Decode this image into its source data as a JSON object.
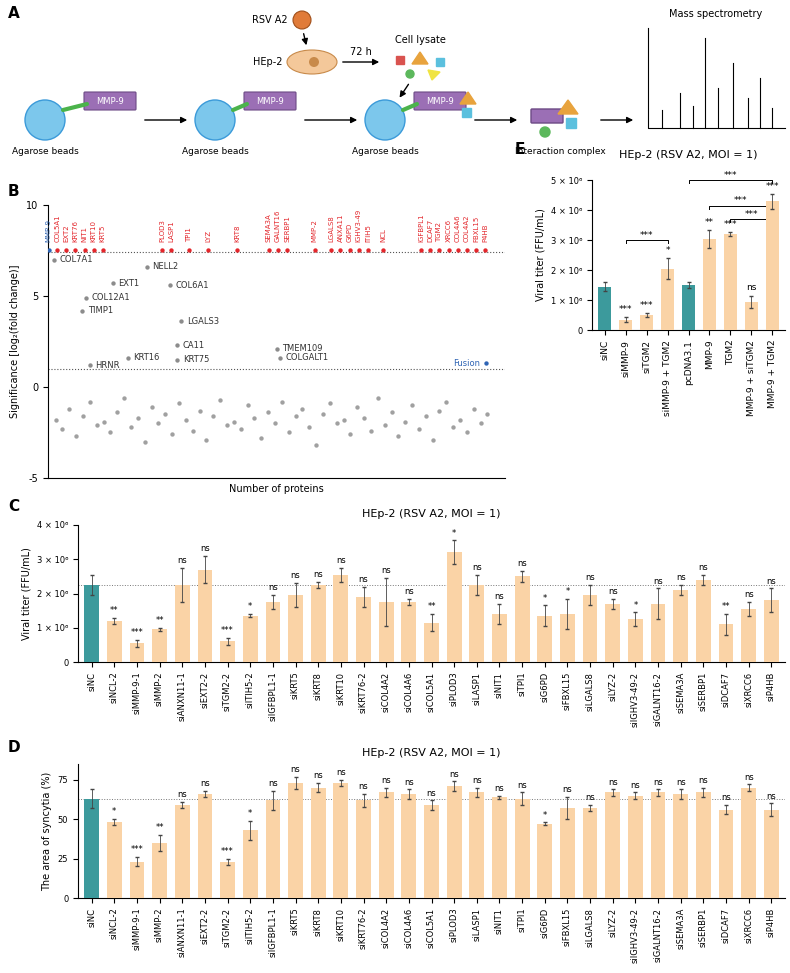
{
  "diagram": {
    "panel": "A",
    "virus": "RSV A2",
    "time": "72 h",
    "cell": "HEp-2",
    "lysate": "Cell lysate",
    "proteins": [
      "MMP-9",
      "MMP-9",
      "MMP-9"
    ],
    "beads": [
      "Agarose beads",
      "Agarose beads",
      "Agarose beads"
    ],
    "complex": "Interaction complex",
    "ms": "Mass spectrometry"
  },
  "chart_data": [
    {
      "panel": "B",
      "type": "scatter",
      "xlabel": "Number of proteins",
      "ylabel": "Significance [log₂(fold change)]",
      "xlim": [
        0,
        600
      ],
      "ylim": [
        -5,
        10
      ],
      "yticks": [
        -5,
        0,
        5,
        10
      ],
      "tick_labels": "y",
      "reference_lines": [
        7.4,
        1
      ],
      "series": [
        {
          "color": "#e3262b",
          "x": [
            12,
            24,
            36,
            48,
            60,
            72,
            150,
            162,
            185,
            210,
            248,
            290,
            302,
            314,
            350,
            372,
            384,
            396,
            408,
            420,
            440,
            490,
            502,
            514,
            526,
            538,
            550,
            562,
            574
          ],
          "values": [
            7.5,
            7.5,
            7.5,
            7.5,
            7.5,
            7.5,
            7.5,
            7.5,
            7.5,
            7.5,
            7.5,
            7.5,
            7.5,
            7.5,
            7.5,
            7.5,
            7.5,
            7.5,
            7.5,
            7.5,
            7.5,
            7.5,
            7.5,
            7.5,
            7.5,
            7.5,
            7.5,
            7.5,
            7.5
          ],
          "point_labels": [
            "COL5A1",
            "EXT2",
            "KRT76",
            "NIT1",
            "KRT10",
            "KRT5",
            "PLOD3",
            "LASP1",
            "TPI1",
            "LYZ",
            "KRT8",
            "SEMA3A",
            "GALNT16",
            "SERBP1",
            "MMP-2",
            "LGALS8",
            "ANXA11",
            "G6PD",
            "IGHV3-49",
            "ITIH5",
            "NCL",
            "IGFBPL1",
            "DCAF7",
            "TGM2",
            "XRCC6",
            "COL4A6",
            "COL4A2",
            "FBXL15",
            "P4HB"
          ]
        },
        {
          "color": "#2e64b4",
          "x": [
            1,
            575
          ],
          "values": [
            7.5,
            1.3
          ],
          "point_labels": [
            "MMP-9",
            "Fusion"
          ]
        },
        {
          "color": "#8c8c8c",
          "x": [
            8,
            130,
            85,
            160,
            50,
            45,
            175,
            170,
            300,
            305,
            170,
            55,
            105
          ],
          "values": [
            7.0,
            6.6,
            5.7,
            5.6,
            4.9,
            4.2,
            3.6,
            2.3,
            2.1,
            1.6,
            1.5,
            1.2,
            1.6
          ],
          "point_labels": [
            "COL7A1",
            "NELL2",
            "EXT1",
            "COL6A1",
            "COL12A1",
            "TIMP1",
            "LGALS3",
            "CA11",
            "TMEM109",
            "COLGALT1",
            "KRT75",
            "HRNR",
            "KRT16"
          ]
        },
        {
          "color": "#a0a0a0",
          "x": [
            10,
            19,
            28,
            37,
            46,
            55,
            64,
            73,
            82,
            91,
            100,
            109,
            118,
            127,
            136,
            145,
            154,
            163,
            172,
            181,
            190,
            199,
            208,
            217,
            226,
            235,
            244,
            253,
            262,
            271,
            280,
            289,
            298,
            307,
            316,
            325,
            334,
            343,
            352,
            361,
            370,
            379,
            388,
            397,
            406,
            415,
            424,
            433,
            442,
            451,
            460,
            469,
            478,
            487,
            496,
            505,
            514,
            523,
            532,
            541,
            550,
            559,
            568,
            577
          ],
          "values": [
            -1.8,
            -2.3,
            -1.2,
            -2.7,
            -1.6,
            -0.8,
            -2.1,
            -1.9,
            -2.5,
            -1.4,
            -0.6,
            -2.2,
            -1.7,
            -3.0,
            -1.1,
            -2.0,
            -1.5,
            -2.6,
            -0.9,
            -1.8,
            -2.4,
            -1.3,
            -2.9,
            -1.6,
            -0.7,
            -2.1,
            -1.9,
            -2.3,
            -1.0,
            -1.7,
            -2.8,
            -1.4,
            -2.0,
            -0.8,
            -2.5,
            -1.6,
            -1.2,
            -2.2,
            -3.2,
            -1.5,
            -0.9,
            -2.0,
            -1.8,
            -2.6,
            -1.1,
            -1.7,
            -2.4,
            -0.6,
            -2.1,
            -1.4,
            -2.7,
            -1.9,
            -1.0,
            -2.3,
            -1.6,
            -2.9,
            -1.3,
            -0.8,
            -2.2,
            -1.8,
            -2.5,
            -1.2,
            -2.0,
            -1.5
          ]
        }
      ]
    },
    {
      "panel": "C",
      "type": "bar",
      "title": "HEp-2 (RSV A2, MOI = 1)",
      "ylabel": "Viral titer (FFU/mL)",
      "categories": [
        "siNC",
        "siNCL-2",
        "siMMP-9-1",
        "siMMP-2",
        "siANXN11-1",
        "siEXT2-2",
        "siTGM2-2",
        "siITIH5-2",
        "siIGFBPL1-1",
        "siKRT5",
        "siKRT8",
        "siKRT10",
        "siKRT76-2",
        "siCOL4A2",
        "siCOL4A6",
        "siCOL5A1",
        "siPLOD3",
        "siLASP1",
        "siNIT1",
        "siTPI1",
        "siG6PD",
        "siFBXL15",
        "siLGALS8",
        "siLYZ-2",
        "siIGHV3-49-2",
        "siGALNT16-2",
        "siSEMA3A",
        "siSERBP1",
        "siDCAF7",
        "siXRCC6",
        "siP4HB"
      ],
      "values": [
        2250000,
        1200000,
        550000,
        950000,
        2250000,
        2700000,
        600000,
        1350000,
        1750000,
        1950000,
        2250000,
        2550000,
        1900000,
        1750000,
        1750000,
        1150000,
        3200000,
        2250000,
        1400000,
        2500000,
        1350000,
        1400000,
        1950000,
        1700000,
        1250000,
        1700000,
        2100000,
        2400000,
        1100000,
        1550000,
        1800000
      ],
      "errors": [
        300000,
        80000,
        100000,
        50000,
        500000,
        400000,
        100000,
        50000,
        200000,
        350000,
        100000,
        200000,
        300000,
        700000,
        100000,
        250000,
        350000,
        300000,
        300000,
        150000,
        300000,
        450000,
        300000,
        150000,
        200000,
        450000,
        150000,
        150000,
        300000,
        200000,
        350000
      ],
      "significance": [
        null,
        "**",
        "***",
        "**",
        "ns",
        "ns",
        "***",
        "*",
        "ns",
        "ns",
        "ns",
        "ns",
        "ns",
        "ns",
        "ns",
        "**",
        "*",
        "ns",
        "ns",
        "ns",
        "*",
        "*",
        "ns",
        "ns",
        "*",
        "ns",
        "ns",
        "ns",
        "**",
        "ns",
        "ns"
      ],
      "reference_lines": [
        2250000
      ],
      "colors": [
        "#3c9a9c",
        "#fad3a6",
        "#fad3a6",
        "#fad3a6",
        "#fad3a6",
        "#fad3a6",
        "#fad3a6",
        "#fad3a6",
        "#fad3a6",
        "#fad3a6",
        "#fad3a6",
        "#fad3a6",
        "#fad3a6",
        "#fad3a6",
        "#fad3a6",
        "#fad3a6",
        "#fad3a6",
        "#fad3a6",
        "#fad3a6",
        "#fad3a6",
        "#fad3a6",
        "#fad3a6",
        "#fad3a6",
        "#fad3a6",
        "#fad3a6",
        "#fad3a6",
        "#fad3a6",
        "#fad3a6",
        "#fad3a6",
        "#fad3a6",
        "#fad3a6"
      ],
      "ylim": [
        0,
        4000000
      ],
      "yticks": [
        0,
        {
          "value": 1000000,
          "label": "1 × 10⁶"
        },
        {
          "value": 2000000,
          "label": "2 × 10⁶"
        },
        {
          "value": 3000000,
          "label": "3 × 10⁶"
        },
        {
          "value": 4000000,
          "label": "4 × 10⁶"
        }
      ]
    },
    {
      "panel": "D",
      "type": "bar",
      "title": "HEp-2 (RSV A2, MOI = 1)",
      "ylabel": "The area of syncytia (%)",
      "categories": [
        "siNC",
        "siNCL-2",
        "siMMP-9-1",
        "siMMP-2",
        "siANXN11-1",
        "siEXT2-2",
        "siTGM2-2",
        "siITIH5-2",
        "siIGFBPL1-1",
        "siKRT5",
        "siKRT8",
        "siKRT10",
        "siKRT76-2",
        "siCOL4A2",
        "siCOL4A6",
        "siCOL5A1",
        "siPLOD3",
        "siLASP1",
        "siNIT1",
        "siTPI1",
        "siG6PD",
        "siFBXL15",
        "siLGALS8",
        "siLYZ-2",
        "siIGHV3-49-2",
        "siGALNT16-2",
        "siSEMA3A",
        "siSERBP1",
        "siDCAF7",
        "siXRCC6",
        "siP4HB"
      ],
      "values": [
        63,
        48,
        23,
        35,
        59,
        66,
        23,
        43,
        62,
        73,
        70,
        73,
        62,
        67,
        66,
        59,
        71,
        67,
        64,
        63,
        47,
        57,
        57,
        67,
        65,
        67,
        66,
        67,
        56,
        70,
        56
      ],
      "errors": [
        6,
        2,
        3,
        5,
        2,
        2,
        2,
        6,
        6,
        4,
        3,
        2,
        4,
        3,
        3,
        3,
        3,
        3,
        1,
        4,
        1,
        7,
        2,
        2,
        2,
        2,
        3,
        3,
        3,
        2,
        4
      ],
      "significance": [
        null,
        "*",
        "***",
        "**",
        "ns",
        "ns",
        "***",
        "*",
        "ns",
        "ns",
        "ns",
        "ns",
        "ns",
        "ns",
        "ns",
        "ns",
        "ns",
        "ns",
        "ns",
        "ns",
        "*",
        "ns",
        "ns",
        "ns",
        "ns",
        "ns",
        "ns",
        "ns",
        "ns",
        "ns",
        "ns"
      ],
      "reference_lines": [
        63
      ],
      "colors": [
        "#3c9a9c",
        "#fad3a6",
        "#fad3a6",
        "#fad3a6",
        "#fad3a6",
        "#fad3a6",
        "#fad3a6",
        "#fad3a6",
        "#fad3a6",
        "#fad3a6",
        "#fad3a6",
        "#fad3a6",
        "#fad3a6",
        "#fad3a6",
        "#fad3a6",
        "#fad3a6",
        "#fad3a6",
        "#fad3a6",
        "#fad3a6",
        "#fad3a6",
        "#fad3a6",
        "#fad3a6",
        "#fad3a6",
        "#fad3a6",
        "#fad3a6",
        "#fad3a6",
        "#fad3a6",
        "#fad3a6",
        "#fad3a6",
        "#fad3a6",
        "#fad3a6"
      ],
      "ylim": [
        0,
        85
      ],
      "yticks": [
        0,
        25,
        50,
        75
      ]
    },
    {
      "panel": "E",
      "type": "bar",
      "title": "HEp-2 (RSV A2, MOI = 1)",
      "ylabel": "Viral titer (FFU/mL)",
      "categories": [
        "siNC",
        "siMMP-9",
        "siTGM2",
        "siMMP-9 + TGM2",
        "pcDNA3.1",
        "MMP-9",
        "TGM2",
        "MMP-9 + siTGM2",
        "MMP-9 + TGM2"
      ],
      "values": [
        1450000,
        350000,
        500000,
        2050000,
        1500000,
        3050000,
        3200000,
        950000,
        4300000
      ],
      "errors": [
        150000,
        80000,
        80000,
        350000,
        100000,
        300000,
        80000,
        200000,
        250000
      ],
      "significance": [
        null,
        "***",
        "***",
        "*",
        null,
        "**",
        "***",
        "ns",
        "***"
      ],
      "brackets": [
        {
          "from": 1,
          "to": 3,
          "y": 3000000,
          "label": "***"
        },
        {
          "from": 6,
          "to": 8,
          "y": 3700000,
          "label": "***"
        },
        {
          "from": 5,
          "to": 8,
          "y": 4150000,
          "label": "***"
        },
        {
          "from": 4,
          "to": 8,
          "y": 5000000,
          "label": "***"
        }
      ],
      "colors": [
        "#3c9a9c",
        "#fad3a6",
        "#fad3a6",
        "#fad3a6",
        "#3c9a9c",
        "#fad3a6",
        "#fad3a6",
        "#fad3a6",
        "#fad3a6"
      ],
      "ylim": [
        0,
        5000000
      ],
      "yticks": [
        0,
        {
          "value": 1000000,
          "label": "1 × 10⁶"
        },
        {
          "value": 2000000,
          "label": "2 × 10⁶"
        },
        {
          "value": 3000000,
          "label": "3 × 10⁶"
        },
        {
          "value": 4000000,
          "label": "4 × 10⁶"
        },
        {
          "value": 5000000,
          "label": "5 × 10⁶"
        }
      ]
    }
  ]
}
